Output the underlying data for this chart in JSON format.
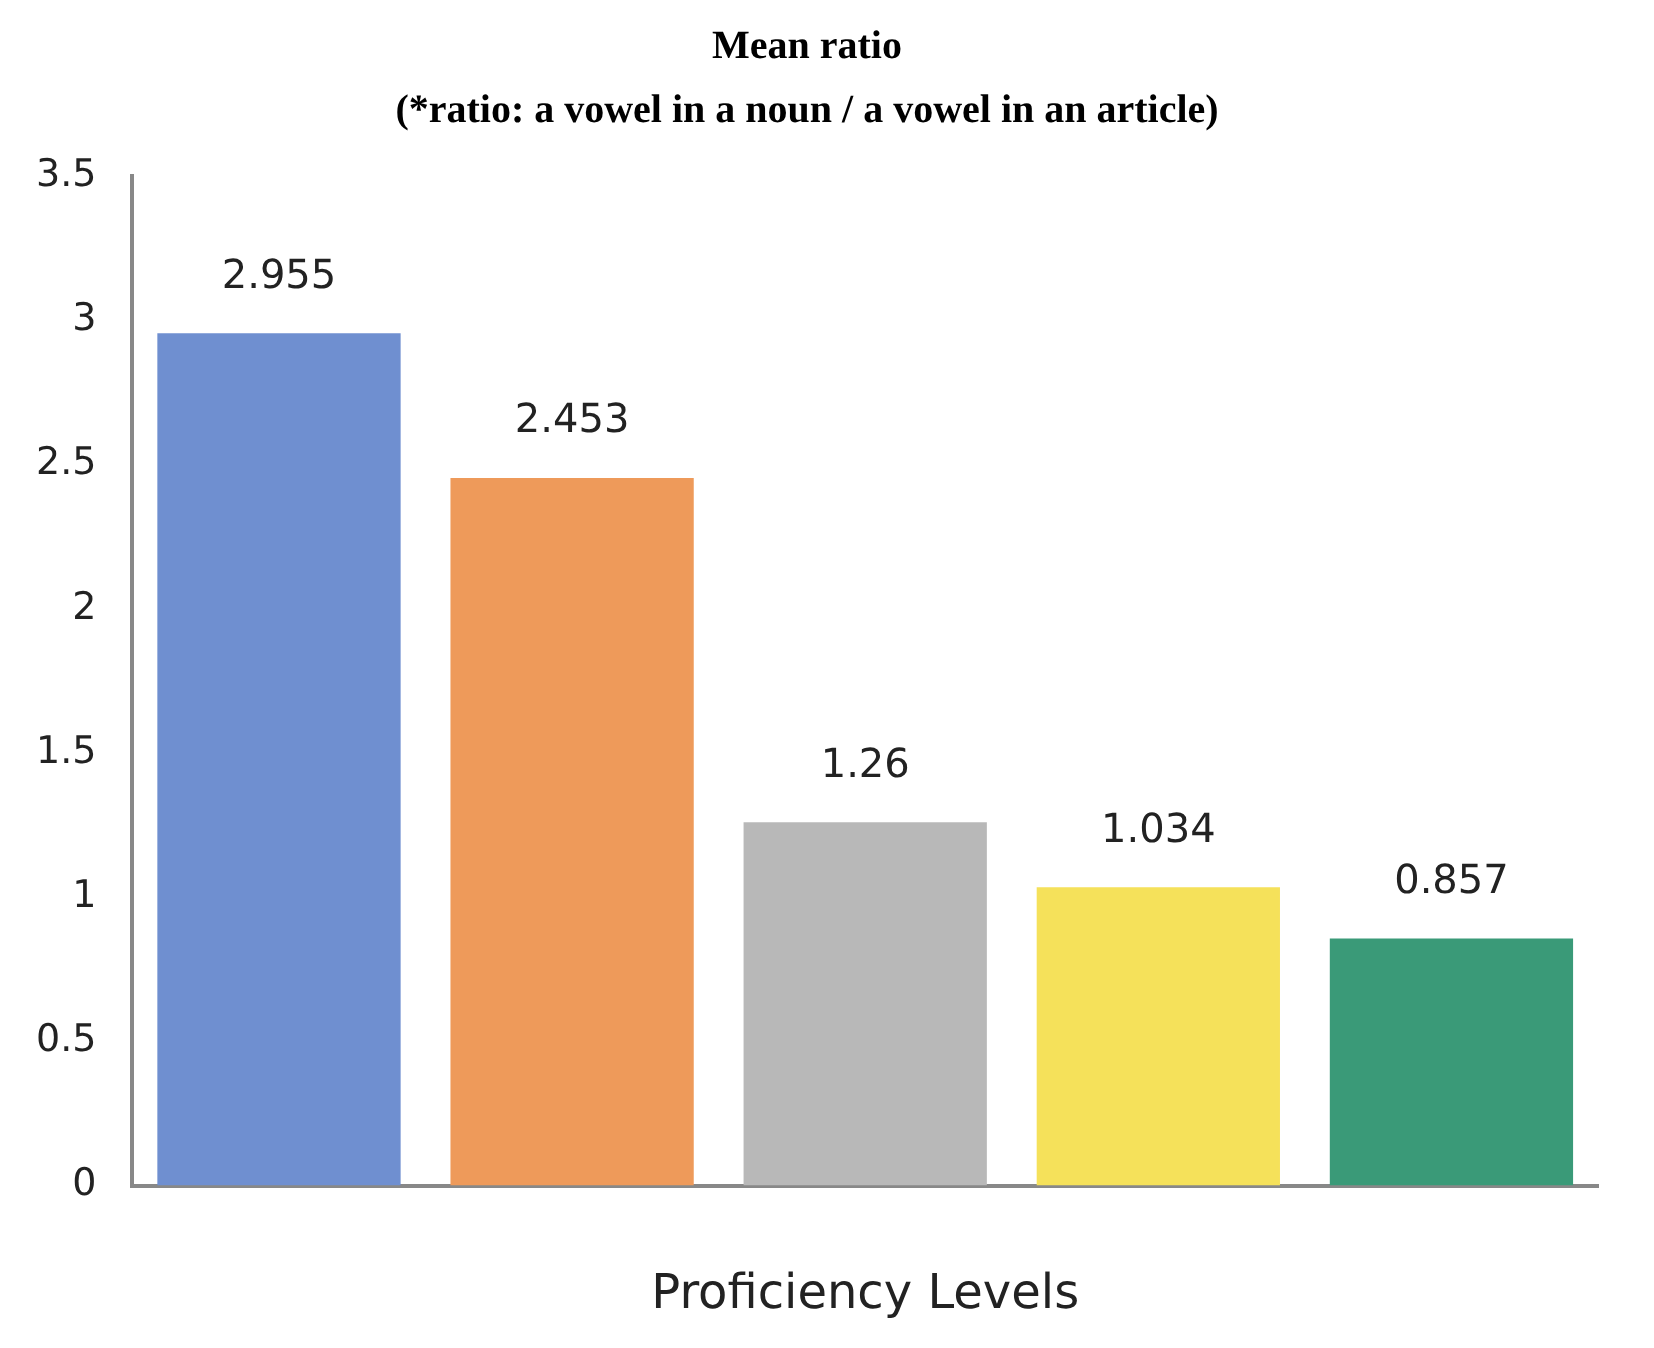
{
  "chart_data": {
    "type": "bar",
    "title": "Mean ratio",
    "subtitle": "(*ratio: a vowel in a noun / a vowel in an article)",
    "xlabel": "Proficiency Levels",
    "categories": [
      null,
      null,
      null,
      null,
      null
    ],
    "values": [
      2.955,
      2.453,
      1.26,
      1.034,
      0.857
    ],
    "colors": [
      "#6f8fd0",
      "#ee9a5a",
      "#b8b8b8",
      "#f5e15a",
      "#3a9a78"
    ],
    "ylim": [
      0,
      3.5
    ],
    "yticks": [
      0,
      0.5,
      1,
      1.5,
      2,
      2.5,
      3,
      3.5
    ],
    "grid": false,
    "legend": false,
    "data_labels": true
  }
}
